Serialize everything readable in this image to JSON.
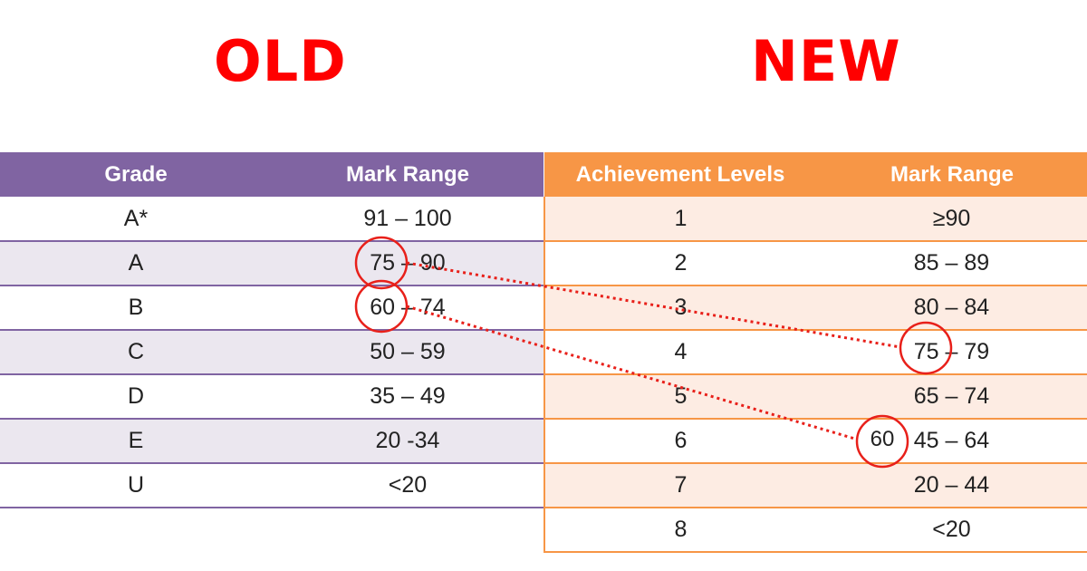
{
  "headings": {
    "old": "OLD",
    "new": "NEW"
  },
  "old_table": {
    "headers": [
      "Grade",
      "Mark Range"
    ],
    "rows": [
      [
        "A*",
        "91 – 100"
      ],
      [
        "A",
        "75 – 90"
      ],
      [
        "B",
        "60 – 74"
      ],
      [
        "C",
        "50 – 59"
      ],
      [
        "D",
        "35 – 49"
      ],
      [
        "E",
        "20 -34"
      ],
      [
        "U",
        "<20"
      ]
    ]
  },
  "new_table": {
    "headers": [
      "Achievement Levels",
      "Mark Range"
    ],
    "rows": [
      [
        "1",
        "≥90"
      ],
      [
        "2",
        "85 – 89"
      ],
      [
        "3",
        "80 – 84"
      ],
      [
        "4",
        "75 – 79"
      ],
      [
        "5",
        "65 – 74"
      ],
      [
        "6",
        "45 – 64"
      ],
      [
        "7",
        "20 – 44"
      ],
      [
        "8",
        "<20"
      ]
    ]
  },
  "annotations": {
    "color": "#e8201a",
    "circled_label": "60"
  },
  "colors": {
    "old_header": "#8064a2",
    "new_header": "#f79646",
    "heading": "#ff0000"
  }
}
